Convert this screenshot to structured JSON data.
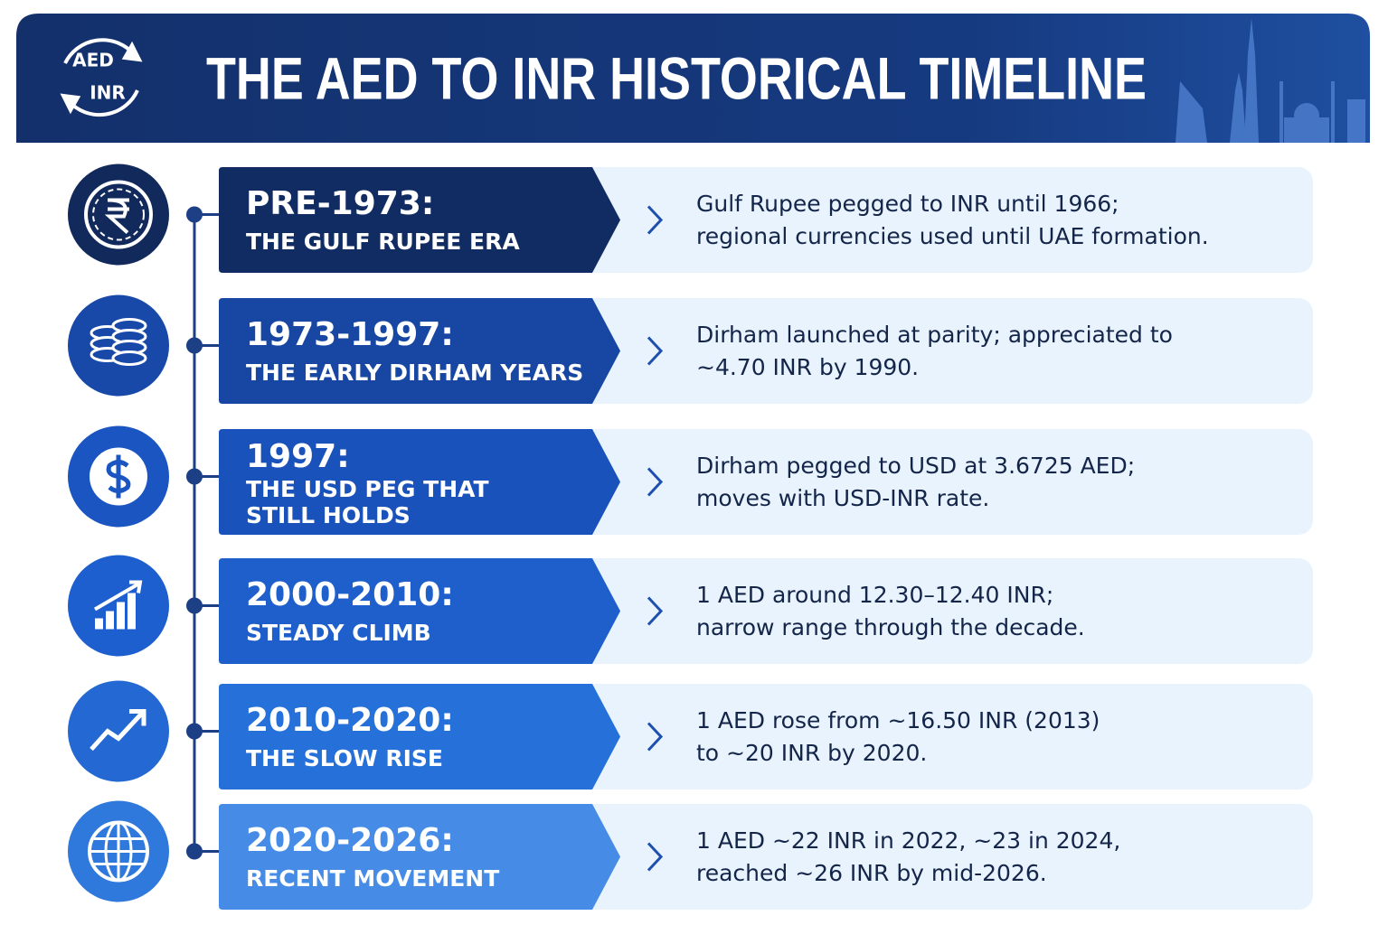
{
  "header": {
    "title": "THE AED TO INR HISTORICAL TIMELINE",
    "logo_top": "AED",
    "logo_bottom": "INR"
  },
  "timeline": [
    {
      "period": "PRE-1973:",
      "subtitle": [
        "THE GULF RUPEE ERA"
      ],
      "description": [
        "Gulf Rupee pegged to INR until 1966;",
        "regional currencies used until UAE formation."
      ]
    },
    {
      "period": "1973-1997:",
      "subtitle": [
        "THE EARLY DIRHAM YEARS"
      ],
      "description": [
        "Dirham launched at parity; appreciated to",
        "~4.70 INR by 1990."
      ]
    },
    {
      "period": "1997:",
      "subtitle": [
        "THE USD PEG THAT",
        "STILL HOLDS"
      ],
      "description": [
        "Dirham pegged to USD at 3.6725 AED;",
        "moves with USD-INR rate."
      ]
    },
    {
      "period": "2000-2010:",
      "subtitle": [
        "STEADY CLIMB"
      ],
      "description": [
        "1 AED around 12.30–12.40 INR;",
        "narrow range through the decade."
      ]
    },
    {
      "period": "2010-2020:",
      "subtitle": [
        "THE SLOW RISE"
      ],
      "description": [
        "1 AED rose from ~16.50 INR (2013)",
        "to ~20 INR by 2020."
      ]
    },
    {
      "period": "2020-2026:",
      "subtitle": [
        "RECENT MOVEMENT"
      ],
      "description": [
        "1 AED ~22 INR in 2022, ~23 in 2024,",
        "reached ~26 INR by mid-2026."
      ]
    }
  ]
}
